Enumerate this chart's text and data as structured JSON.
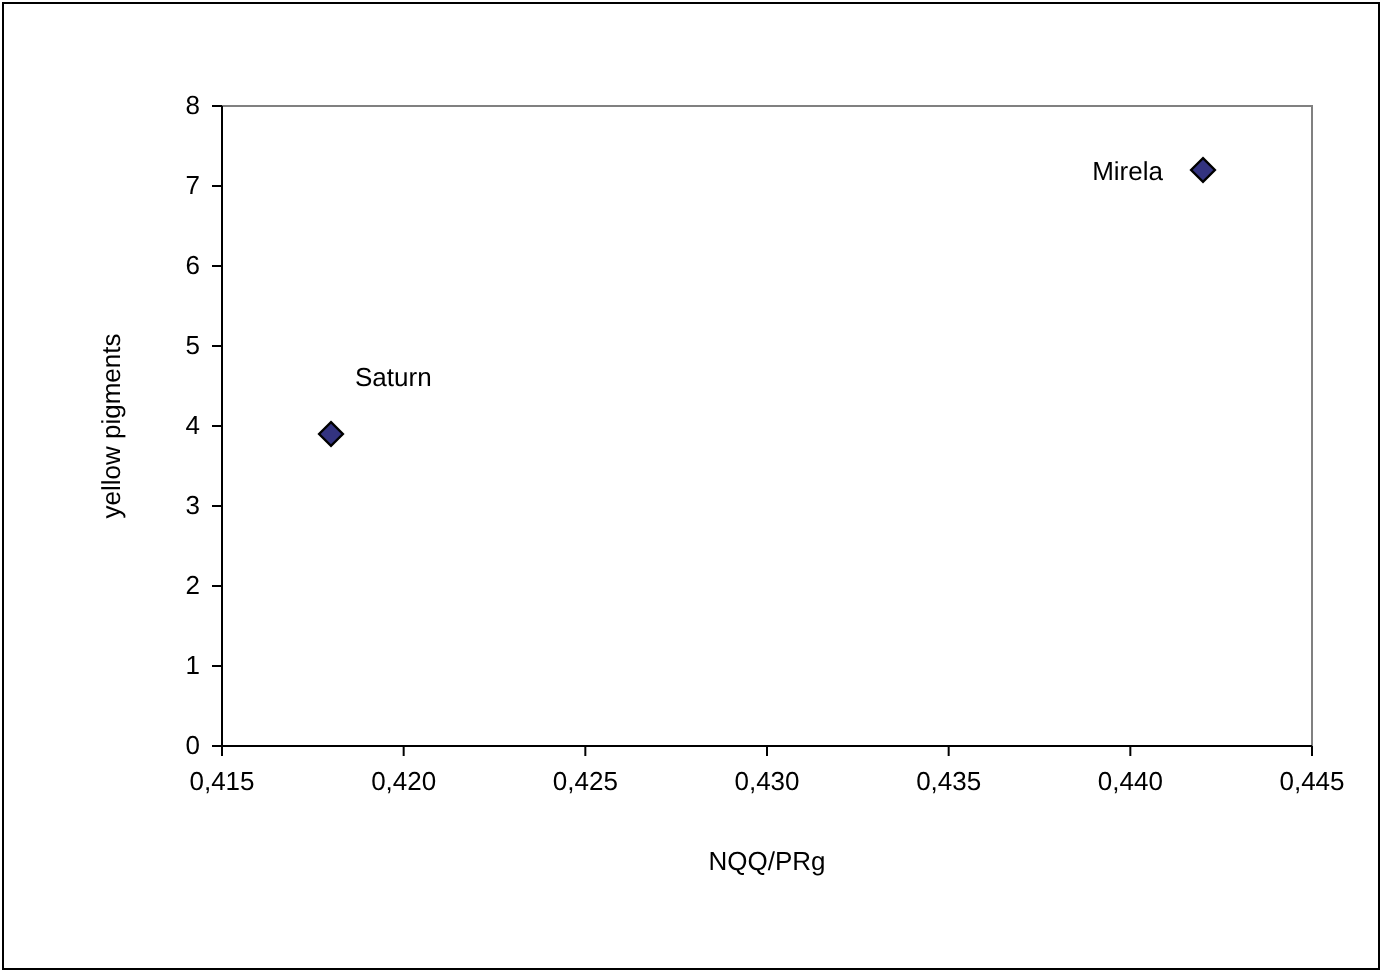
{
  "chart_data": {
    "type": "scatter",
    "xlabel": "NQQ/PRg",
    "ylabel": "yellow pigments",
    "x": [
      0.418,
      0.442
    ],
    "series": [
      {
        "color": "#333380",
        "values": [
          3.9,
          7.2
        ]
      }
    ],
    "marker": "diamond",
    "grid": false,
    "xlim": [
      0.415,
      0.445
    ],
    "xticks": [
      {
        "value": 0.415,
        "label": "0,415"
      },
      {
        "value": 0.42,
        "label": "0,420"
      },
      {
        "value": 0.425,
        "label": "0,425"
      },
      {
        "value": 0.43,
        "label": "0,430"
      },
      {
        "value": 0.435,
        "label": "0,435"
      },
      {
        "value": 0.44,
        "label": "0,440"
      },
      {
        "value": 0.445,
        "label": "0,445"
      }
    ],
    "ylim": [
      0,
      8
    ],
    "yticks": [
      0,
      1,
      2,
      3,
      4,
      5,
      6,
      7,
      8
    ],
    "annotations": [
      {
        "text": "Saturn",
        "x": 0.418,
        "y": 3.9
      },
      {
        "text": "Mirela",
        "x": 0.442,
        "y": 7.2
      }
    ]
  }
}
